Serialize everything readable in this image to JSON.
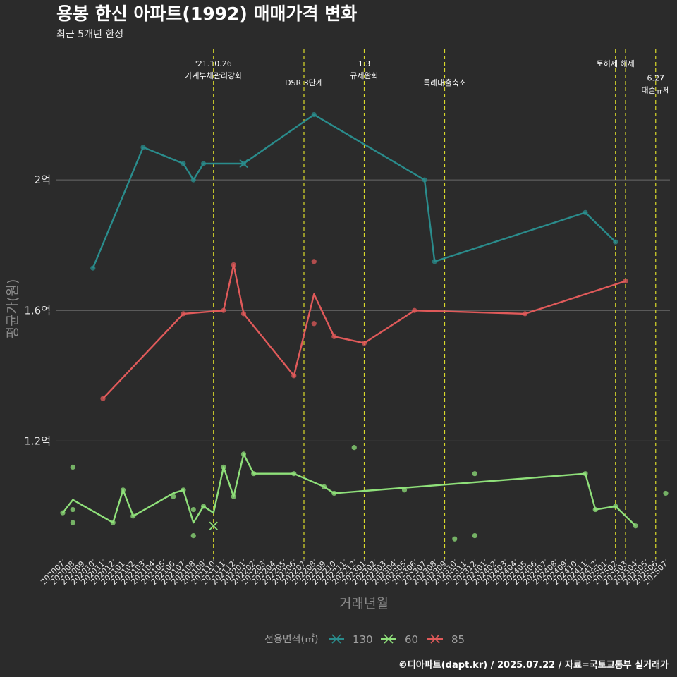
{
  "title": "용봉 한신 아파트(1992) 매매가격 변화",
  "subtitle": "최근 5개년 한정",
  "caption": "©디아파트(dapt.kr) / 2025.07.22 / 자료=국토교통부 실거래가",
  "chart_data": {
    "type": "line",
    "xlabel": "거래년월",
    "ylabel": "평균가(원)",
    "ylim": [
      0.84,
      2.4
    ],
    "yticks": [
      {
        "value": 1.2,
        "label": "1.2억"
      },
      {
        "value": 1.6,
        "label": "1.6억"
      },
      {
        "value": 2.0,
        "label": "2억"
      }
    ],
    "grid": true,
    "categories": [
      "202007",
      "202008",
      "202009",
      "202010",
      "202011",
      "202012",
      "202101",
      "202102",
      "202103",
      "202104",
      "202105",
      "202106",
      "202107",
      "202108",
      "202109",
      "202110",
      "202111",
      "202112",
      "202201",
      "202202",
      "202203",
      "202204",
      "202205",
      "202206",
      "202207",
      "202208",
      "202209",
      "202210",
      "202211",
      "202212",
      "202301",
      "202302",
      "202303",
      "202304",
      "202305",
      "202306",
      "202307",
      "202308",
      "202309",
      "202310",
      "202311",
      "202312",
      "202401",
      "202402",
      "202403",
      "202404",
      "202405",
      "202406",
      "202407",
      "202408",
      "202409",
      "202410",
      "202411",
      "202412",
      "202501",
      "202502",
      "202503",
      "202504",
      "202505",
      "202506",
      "202507"
    ],
    "legend": {
      "title": "전용면적(㎡)",
      "position": "bottom"
    },
    "series": [
      {
        "name": "130",
        "color": "#2a8c8c",
        "line": [
          [
            "202010",
            1.73
          ],
          [
            "202103",
            2.1
          ],
          [
            "202107",
            2.05
          ],
          [
            "202108",
            2.0
          ],
          [
            "202109",
            2.05
          ],
          [
            "202201",
            2.05
          ],
          [
            "202208",
            2.2
          ],
          [
            "202307",
            2.0
          ],
          [
            "202308",
            1.75
          ],
          [
            "202411",
            1.9
          ],
          [
            "202502",
            1.81
          ]
        ],
        "points": [
          [
            "202010",
            1.73
          ],
          [
            "202103",
            2.1
          ],
          [
            "202107",
            2.05
          ],
          [
            "202108",
            2.0
          ],
          [
            "202109",
            2.05
          ],
          [
            "202201",
            2.05
          ],
          [
            "202208",
            2.2
          ],
          [
            "202307",
            2.0
          ],
          [
            "202308",
            1.75
          ],
          [
            "202411",
            1.9
          ],
          [
            "202502",
            1.81
          ]
        ],
        "marker": [
          "202201",
          2.05
        ]
      },
      {
        "name": "60",
        "color": "#8fe07a",
        "line": [
          [
            "202007",
            0.98
          ],
          [
            "202008",
            1.02
          ],
          [
            "202012",
            0.95
          ],
          [
            "202101",
            1.05
          ],
          [
            "202102",
            0.97
          ],
          [
            "202106",
            1.04
          ],
          [
            "202107",
            1.05
          ],
          [
            "202108",
            0.95
          ],
          [
            "202109",
            1.0
          ],
          [
            "202110",
            0.98
          ],
          [
            "202111",
            1.12
          ],
          [
            "202112",
            1.03
          ],
          [
            "202201",
            1.16
          ],
          [
            "202202",
            1.1
          ],
          [
            "202206",
            1.1
          ],
          [
            "202209",
            1.06
          ],
          [
            "202210",
            1.04
          ],
          [
            "202411",
            1.1
          ],
          [
            "202412",
            0.99
          ],
          [
            "202502",
            1.0
          ],
          [
            "202504",
            0.94
          ]
        ],
        "points": [
          [
            "202007",
            0.98
          ],
          [
            "202008",
            1.12
          ],
          [
            "202008",
            0.99
          ],
          [
            "202008",
            0.95
          ],
          [
            "202012",
            0.95
          ],
          [
            "202101",
            1.05
          ],
          [
            "202102",
            0.97
          ],
          [
            "202106",
            1.03
          ],
          [
            "202107",
            1.05
          ],
          [
            "202108",
            0.99
          ],
          [
            "202108",
            0.91
          ],
          [
            "202109",
            1.0
          ],
          [
            "202111",
            1.12
          ],
          [
            "202112",
            1.03
          ],
          [
            "202201",
            1.16
          ],
          [
            "202202",
            1.1
          ],
          [
            "202206",
            1.1
          ],
          [
            "202209",
            1.06
          ],
          [
            "202210",
            1.04
          ],
          [
            "202212",
            1.18
          ],
          [
            "202305",
            1.05
          ],
          [
            "202310",
            0.9
          ],
          [
            "202312",
            1.1
          ],
          [
            "202312",
            0.91
          ],
          [
            "202411",
            1.1
          ],
          [
            "202412",
            0.99
          ],
          [
            "202502",
            1.0
          ],
          [
            "202504",
            0.94
          ],
          [
            "202507",
            1.04
          ]
        ],
        "marker": [
          "202110",
          0.94
        ]
      },
      {
        "name": "85",
        "color": "#e05a5a",
        "line": [
          [
            "202011",
            1.33
          ],
          [
            "202107",
            1.59
          ],
          [
            "202111",
            1.6
          ],
          [
            "202112",
            1.74
          ],
          [
            "202201",
            1.59
          ],
          [
            "202206",
            1.4
          ],
          [
            "202208",
            1.65
          ],
          [
            "202210",
            1.52
          ],
          [
            "202301",
            1.5
          ],
          [
            "202306",
            1.6
          ],
          [
            "202405",
            1.59
          ],
          [
            "202503",
            1.69
          ]
        ],
        "points": [
          [
            "202011",
            1.33
          ],
          [
            "202107",
            1.59
          ],
          [
            "202111",
            1.6
          ],
          [
            "202112",
            1.74
          ],
          [
            "202201",
            1.59
          ],
          [
            "202206",
            1.4
          ],
          [
            "202208",
            1.75
          ],
          [
            "202208",
            1.56
          ],
          [
            "202210",
            1.52
          ],
          [
            "202301",
            1.5
          ],
          [
            "202306",
            1.6
          ],
          [
            "202405",
            1.59
          ],
          [
            "202503",
            1.69
          ]
        ],
        "marker": null
      }
    ],
    "events": [
      {
        "month": "202110",
        "lines": [
          "'21.10.26",
          "가계부채관리강화"
        ],
        "level": 0
      },
      {
        "month": "202207",
        "lines": [
          "DSR 3단계"
        ],
        "level": 1
      },
      {
        "month": "202301",
        "lines": [
          "1.3",
          "규제완화"
        ],
        "level": 0
      },
      {
        "month": "202309",
        "lines": [
          "특례대출축소"
        ],
        "level": 1
      },
      {
        "month": "202502",
        "lines": [
          "토허제 해제"
        ],
        "level": 0
      },
      {
        "month": "202503",
        "lines": [],
        "level": 0
      },
      {
        "month": "202506",
        "lines": [
          "6.27",
          "대출규제"
        ],
        "level": 0.75
      }
    ]
  }
}
